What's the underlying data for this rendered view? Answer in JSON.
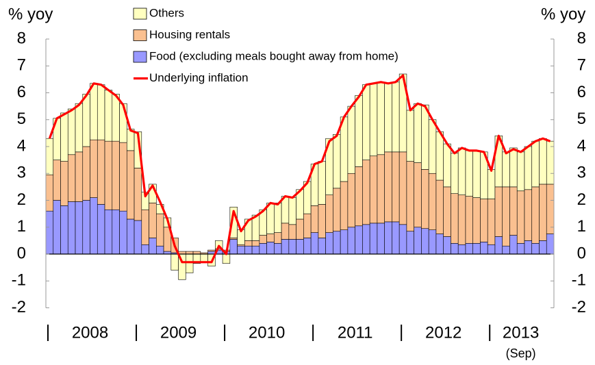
{
  "chart_data": {
    "type": "stacked_bar_line",
    "y_label": "% yoy",
    "y2_label": "% yoy",
    "categories": [
      null,
      null,
      null,
      null,
      null,
      null,
      null,
      null,
      null,
      null,
      null,
      null,
      null,
      null,
      null,
      null,
      null,
      null,
      null,
      null,
      null,
      null,
      null,
      null,
      null,
      null,
      null,
      null,
      null,
      null,
      null,
      null,
      null,
      null,
      null,
      null,
      null,
      null,
      null,
      null,
      null,
      null,
      null,
      null,
      null,
      null,
      null,
      null,
      null,
      null,
      null,
      null,
      null,
      null,
      null,
      null,
      null,
      null,
      null,
      null,
      null,
      null,
      null,
      null,
      null,
      null,
      null,
      null,
      null
    ],
    "year_labels": [
      "2008",
      "2009",
      "2010",
      "2011",
      "2012",
      "2013"
    ],
    "annotation": "(Sep)",
    "series": [
      {
        "name": "Food (excluding meals bought away from home)",
        "color": "#9999ff",
        "kind": "bar",
        "values": [
          1.6,
          2.0,
          1.8,
          1.95,
          1.95,
          2.0,
          2.1,
          1.85,
          1.65,
          1.65,
          1.6,
          1.3,
          1.25,
          0.35,
          0.6,
          0.3,
          0.1,
          0.05,
          0.0,
          0.0,
          0.0,
          0.0,
          0.1,
          0.15,
          0.1,
          0.55,
          0.3,
          0.3,
          0.3,
          0.4,
          0.45,
          0.4,
          0.55,
          0.55,
          0.55,
          0.6,
          0.8,
          0.6,
          0.8,
          0.85,
          0.9,
          1.0,
          1.05,
          1.1,
          1.15,
          1.15,
          1.2,
          1.2,
          1.1,
          0.85,
          1.0,
          0.95,
          0.9,
          0.75,
          0.65,
          0.4,
          0.35,
          0.4,
          0.4,
          0.45,
          0.35,
          0.65,
          0.3,
          0.7,
          0.4,
          0.5,
          0.4,
          0.5,
          0.75
        ]
      },
      {
        "name": "Housing rentals",
        "color": "#fac090",
        "kind": "bar",
        "values": [
          1.35,
          1.5,
          1.65,
          1.75,
          1.85,
          2.0,
          2.15,
          2.4,
          2.55,
          2.55,
          2.55,
          2.55,
          1.95,
          1.3,
          1.3,
          1.2,
          0.9,
          0.55,
          0.1,
          0.1,
          0.1,
          0.05,
          0.05,
          0.05,
          0.05,
          0.05,
          0.05,
          0.2,
          0.2,
          0.3,
          0.3,
          0.4,
          0.6,
          0.55,
          0.75,
          0.9,
          1.0,
          1.25,
          1.4,
          1.6,
          1.8,
          2.0,
          2.2,
          2.4,
          2.5,
          2.55,
          2.6,
          2.6,
          2.7,
          2.6,
          2.4,
          2.2,
          2.1,
          2.0,
          1.85,
          1.85,
          1.85,
          1.75,
          1.7,
          1.6,
          1.7,
          1.85,
          2.2,
          1.8,
          1.95,
          1.9,
          2.1,
          2.1,
          1.85
        ]
      },
      {
        "name": "Others",
        "color": "#ffffc0",
        "kind": "bar",
        "values": [
          1.35,
          1.55,
          1.8,
          1.7,
          1.8,
          1.95,
          2.1,
          2.05,
          1.9,
          1.75,
          1.45,
          0.8,
          1.35,
          0.65,
          0.7,
          0.35,
          0.35,
          -0.6,
          -0.95,
          -0.7,
          -0.35,
          -0.3,
          -0.45,
          0.3,
          -0.35,
          1.15,
          0.55,
          0.8,
          0.95,
          0.95,
          1.15,
          1.1,
          1.0,
          1.0,
          1.1,
          1.2,
          1.55,
          1.6,
          2.1,
          2.0,
          2.4,
          2.5,
          2.65,
          2.8,
          2.7,
          2.7,
          2.55,
          2.6,
          2.9,
          1.9,
          2.2,
          2.4,
          2.0,
          1.8,
          1.6,
          1.5,
          1.75,
          1.7,
          1.75,
          1.75,
          1.1,
          1.9,
          1.3,
          1.45,
          1.45,
          1.6,
          1.7,
          1.7,
          1.6
        ]
      },
      {
        "name": "Underlying inflation",
        "color": "#ff0000",
        "kind": "line",
        "values": [
          4.3,
          5.05,
          5.2,
          5.35,
          5.55,
          5.9,
          6.35,
          6.3,
          6.1,
          5.9,
          5.55,
          4.6,
          4.5,
          2.15,
          2.55,
          1.95,
          1.3,
          0.3,
          -0.3,
          -0.3,
          -0.3,
          -0.3,
          -0.3,
          0.3,
          0.0,
          1.6,
          0.85,
          1.25,
          1.4,
          1.6,
          1.9,
          1.85,
          2.15,
          2.1,
          2.35,
          2.65,
          3.35,
          3.45,
          4.2,
          4.4,
          5.1,
          5.5,
          5.85,
          6.3,
          6.35,
          6.4,
          6.35,
          6.4,
          6.65,
          5.35,
          5.6,
          5.5,
          5.0,
          4.55,
          4.1,
          3.75,
          3.95,
          3.85,
          3.85,
          3.8,
          3.1,
          4.4,
          3.75,
          3.9,
          3.8,
          4.0,
          4.2,
          4.3,
          4.2
        ]
      }
    ],
    "ylim": [
      -2,
      8
    ],
    "yticks": [
      -2,
      -1,
      0,
      1,
      2,
      3,
      4,
      5,
      6,
      7,
      8
    ],
    "y2lim": [
      -2,
      8
    ],
    "y2ticks": [
      -2,
      -1,
      0,
      1,
      2,
      3,
      4,
      5,
      6,
      7,
      8
    ]
  }
}
